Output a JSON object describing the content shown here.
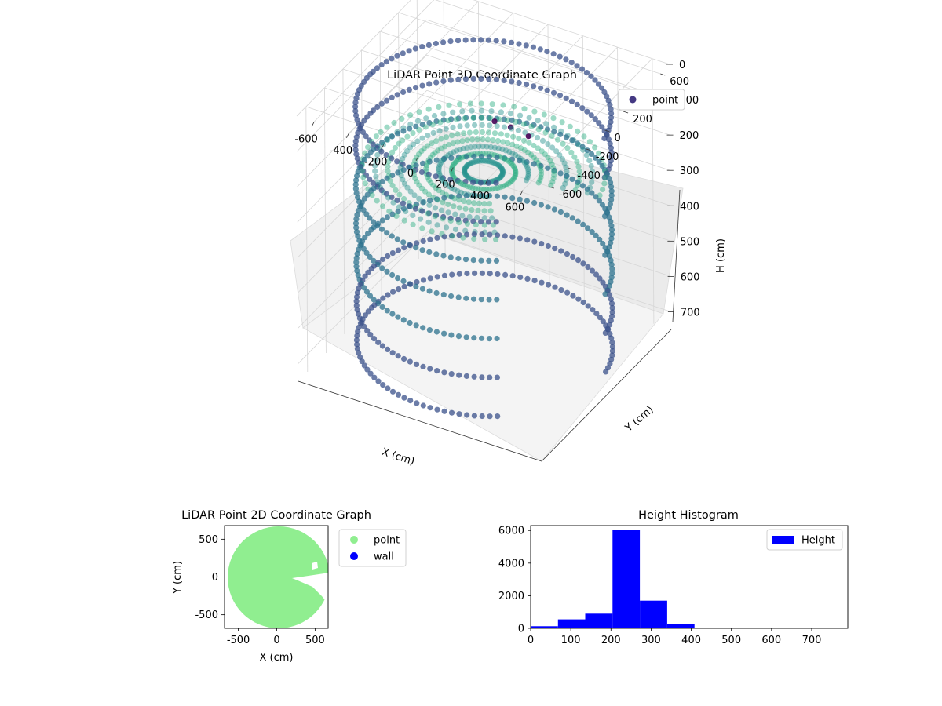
{
  "chart_data": [
    {
      "type": "scatter3d",
      "title": "LiDAR Point 3D Coordinate Graph",
      "xlabel": "X (cm)",
      "ylabel": "Y (cm)",
      "zlabel": "H (cm)",
      "xlim": [
        -700,
        700
      ],
      "ylim": [
        -700,
        700
      ],
      "zlim": [
        0,
        750
      ],
      "z_inverted": true,
      "x_ticks": [
        "-600",
        "-400",
        "-200",
        "0",
        "200",
        "400",
        "600"
      ],
      "y_ticks": [
        "-600",
        "-400",
        "-200",
        "0",
        "200",
        "400",
        "600"
      ],
      "z_ticks": [
        "0",
        "100",
        "200",
        "300",
        "400",
        "500",
        "600",
        "700"
      ],
      "legend": {
        "position": "top-right",
        "entries": [
          "point"
        ]
      },
      "series": [
        {
          "name": "point",
          "color": "#443983",
          "colormap": "viridis",
          "shape": "ring of points, radius ~650 cm, floor at ~230 cm, wall from ~0 to ~720 cm, open sector toward +X/-Y",
          "ring_radius": 650,
          "floor_height": 230,
          "wall_top": 0,
          "wall_bottom": 720
        }
      ],
      "grid": true
    },
    {
      "type": "scatter",
      "title": "LiDAR Point 2D Coordinate Graph",
      "xlabel": "X (cm)",
      "ylabel": "Y (cm)",
      "xlim": [
        -680,
        670
      ],
      "ylim": [
        -680,
        680
      ],
      "x_ticks": [
        "-500",
        "0",
        "500"
      ],
      "y_ticks": [
        "-500",
        "0",
        "500"
      ],
      "legend": {
        "position": "outside-right",
        "entries": [
          "point",
          "wall"
        ]
      },
      "series": [
        {
          "name": "point",
          "color": "#90ee90"
        },
        {
          "name": "wall",
          "color": "#0000ff"
        }
      ],
      "grid": false
    },
    {
      "type": "bar",
      "title": "Height Histogram",
      "xlabel": "",
      "ylabel": "",
      "xlim": [
        0,
        790
      ],
      "ylim": [
        0,
        6300
      ],
      "x_ticks": [
        "0",
        "100",
        "200",
        "300",
        "400",
        "500",
        "600",
        "700"
      ],
      "y_ticks": [
        "0",
        "2000",
        "4000",
        "6000"
      ],
      "legend": {
        "position": "top-right",
        "entries": [
          "Height"
        ]
      },
      "series": [
        {
          "name": "Height",
          "color": "#0000ff",
          "bins": [
            {
              "x0": 0,
              "x1": 68,
              "value": 130
            },
            {
              "x0": 68,
              "x1": 136,
              "value": 550
            },
            {
              "x0": 136,
              "x1": 204,
              "value": 900
            },
            {
              "x0": 204,
              "x1": 272,
              "value": 6050
            },
            {
              "x0": 272,
              "x1": 340,
              "value": 1700
            },
            {
              "x0": 340,
              "x1": 408,
              "value": 260
            },
            {
              "x0": 408,
              "x1": 476,
              "value": 15
            },
            {
              "x0": 476,
              "x1": 544,
              "value": 8
            },
            {
              "x0": 544,
              "x1": 612,
              "value": 5
            },
            {
              "x0": 612,
              "x1": 680,
              "value": 5
            },
            {
              "x0": 680,
              "x1": 748,
              "value": 3
            }
          ]
        }
      ],
      "grid": false
    }
  ]
}
